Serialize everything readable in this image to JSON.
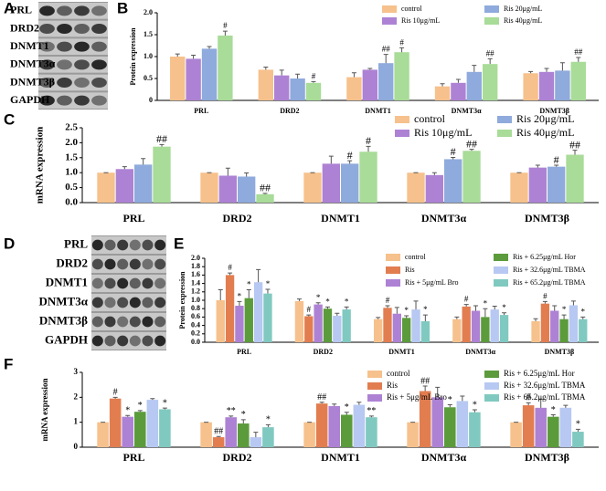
{
  "blots": [
    {
      "panel_label": "A",
      "rows": [
        "PRL",
        "DRD2",
        "DNMT1",
        "DNMT3α",
        "DNMT3β",
        "GAPDH"
      ]
    },
    {
      "panel_label": "D",
      "rows": [
        "PRL",
        "DRD2",
        "DNMT1",
        "DNMT3α",
        "DNMT3β",
        "GAPDH"
      ]
    }
  ],
  "chart_data": [
    {
      "type": "bar",
      "panel_label": "B",
      "y_label": "Protein expression",
      "categories": [
        "PRL",
        "DRD2",
        "DNMT1",
        "DNMT3α",
        "DNMT3β"
      ],
      "ylim": [
        0,
        2
      ],
      "yticks": [
        0,
        0.5,
        {
          "value": 1,
          "label": "1.0"
        },
        1.5,
        {
          "value": 2,
          "label": "2.0"
        }
      ],
      "series": [
        {
          "name": "control",
          "color": "#f6c18c",
          "values": [
            1.0,
            0.7,
            0.53,
            0.32,
            0.62
          ],
          "errors": [
            0.06,
            0.06,
            0.1,
            0.06,
            0.04
          ],
          "annotations": [
            null,
            null,
            null,
            null,
            null
          ]
        },
        {
          "name": "Ris 10μg/mL",
          "color": "#ad82d4",
          "values": [
            0.95,
            0.57,
            0.7,
            0.4,
            0.65
          ],
          "errors": [
            0.08,
            0.12,
            0.03,
            0.08,
            0.08
          ],
          "annotations": [
            null,
            null,
            null,
            null,
            null
          ]
        },
        {
          "name": "Ris 20μg/mL",
          "color": "#8faadc",
          "values": [
            1.18,
            0.5,
            0.85,
            0.65,
            0.68
          ],
          "errors": [
            0.05,
            0.1,
            0.2,
            0.15,
            0.18
          ],
          "annotations": [
            null,
            null,
            "##",
            null,
            null
          ]
        },
        {
          "name": "Ris 40μg/mL",
          "color": "#a8dc98",
          "values": [
            1.48,
            0.4,
            1.1,
            0.83,
            0.88
          ],
          "errors": [
            0.1,
            0.03,
            0.1,
            0.12,
            0.1
          ],
          "annotations": [
            "#",
            "#",
            "#",
            "##",
            "##"
          ]
        }
      ]
    },
    {
      "type": "bar",
      "panel_label": "C",
      "y_label": "mRNA expression",
      "categories": [
        "PRL",
        "DRD2",
        "DNMT1",
        "DNMT3α",
        "DNMT3β"
      ],
      "ylim": [
        0,
        2.5
      ],
      "yticks": [
        {
          "value": 0,
          "label": "0.0"
        },
        0.5,
        {
          "value": 1,
          "label": "1.0"
        },
        1.5,
        {
          "value": 2,
          "label": "2.0"
        },
        2.5
      ],
      "series": [
        {
          "name": "control",
          "color": "#f6c18c",
          "values": [
            1.0,
            1.0,
            1.0,
            1.0,
            1.0
          ],
          "errors": [
            0,
            0,
            0,
            0,
            0
          ],
          "annotations": [
            null,
            null,
            null,
            null,
            null
          ]
        },
        {
          "name": "Ris 10μg/mL",
          "color": "#ad82d4",
          "values": [
            1.12,
            0.9,
            1.3,
            0.92,
            1.17
          ],
          "errors": [
            0.08,
            0.25,
            0.25,
            0.08,
            0.08
          ],
          "annotations": [
            null,
            null,
            null,
            null,
            null
          ]
        },
        {
          "name": "Ris 20μg/mL",
          "color": "#8faadc",
          "values": [
            1.27,
            0.87,
            1.3,
            1.45,
            1.2
          ],
          "errors": [
            0.2,
            0.12,
            0.1,
            0.06,
            0.05
          ],
          "annotations": [
            null,
            null,
            "#",
            "#",
            "#"
          ]
        },
        {
          "name": "Ris 40μg/mL",
          "color": "#a8dc98",
          "values": [
            1.87,
            0.28,
            1.7,
            1.73,
            1.6
          ],
          "errors": [
            0.07,
            0.03,
            0.18,
            0.05,
            0.15
          ],
          "annotations": [
            "##",
            "##",
            "#",
            "##",
            "##"
          ]
        }
      ]
    },
    {
      "type": "bar",
      "panel_label": "E",
      "y_label": "Protein expression",
      "categories": [
        "PRL",
        "DRD2",
        "DNMT1",
        "DNMT3α",
        "DNMT3β"
      ],
      "ylim": [
        0,
        2
      ],
      "yticks": [
        {
          "value": 0,
          "label": "0.0"
        },
        0.2,
        0.4,
        0.6,
        0.8,
        {
          "value": 1,
          "label": "1.0"
        },
        1.2,
        1.4,
        1.6,
        1.8,
        {
          "value": 2,
          "label": "2.0"
        }
      ],
      "series": [
        {
          "name": "control",
          "color": "#f6c18c",
          "values": [
            1.0,
            0.98,
            0.55,
            0.55,
            0.5
          ],
          "errors": [
            0.25,
            0.05,
            0.04,
            0.05,
            0.06
          ],
          "annotations": [
            null,
            null,
            null,
            null,
            null
          ]
        },
        {
          "name": "Ris",
          "color": "#e27d50",
          "values": [
            1.6,
            0.62,
            0.82,
            0.85,
            0.92
          ],
          "errors": [
            0.05,
            0.03,
            0.05,
            0.05,
            0.05
          ],
          "annotations": [
            "#",
            "#",
            "#",
            "#",
            "#"
          ]
        },
        {
          "name": "Ris + 5μg/mL Bro",
          "color": "#ad82d4",
          "values": [
            0.87,
            0.9,
            0.68,
            0.75,
            0.75
          ],
          "errors": [
            0.1,
            0.04,
            0.15,
            0.12,
            0.12
          ],
          "annotations": [
            "*",
            "*",
            null,
            null,
            null
          ]
        },
        {
          "name": "Ris + 6.25μg/mL Hor",
          "color": "#5b9b3b",
          "values": [
            1.05,
            0.8,
            0.58,
            0.6,
            0.55
          ],
          "errors": [
            0.2,
            0.04,
            0.05,
            0.2,
            0.1
          ],
          "annotations": [
            "*",
            "*",
            "*",
            "*",
            "*"
          ]
        },
        {
          "name": "Ris + 32.6μg/mL TBMA",
          "color": "#b7c8f2",
          "values": [
            1.43,
            0.63,
            0.78,
            0.78,
            0.88
          ],
          "errors": [
            0.3,
            0.06,
            0.2,
            0.08,
            0.1
          ],
          "annotations": [
            null,
            null,
            null,
            null,
            null
          ]
        },
        {
          "name": "Ris + 65.2μg/mL TBMA",
          "color": "#80c9c0",
          "values": [
            1.16,
            0.78,
            0.5,
            0.65,
            0.55
          ],
          "errors": [
            0.1,
            0.06,
            0.15,
            0.05,
            0.05
          ],
          "annotations": [
            "*",
            "*",
            "*",
            "*",
            "*"
          ]
        }
      ]
    },
    {
      "type": "bar",
      "panel_label": "F",
      "y_label": "mRNA expression",
      "categories": [
        "PRL",
        "DRD2",
        "DNMT1",
        "DNMT3α",
        "DNMT3β"
      ],
      "ylim": [
        0,
        3
      ],
      "yticks": [
        0,
        1,
        2,
        3
      ],
      "series": [
        {
          "name": "control",
          "color": "#f6c18c",
          "values": [
            1.0,
            1.0,
            1.0,
            1.0,
            1.0
          ],
          "errors": [
            0,
            0,
            0,
            0,
            0
          ],
          "annotations": [
            null,
            null,
            null,
            null,
            null
          ]
        },
        {
          "name": "Ris",
          "color": "#e27d50",
          "values": [
            1.95,
            0.4,
            1.75,
            2.25,
            1.68
          ],
          "errors": [
            0.05,
            0.03,
            0.05,
            0.2,
            0.1
          ],
          "annotations": [
            "#",
            "##",
            "##",
            "##",
            "#"
          ]
        },
        {
          "name": "Ris + 5μg/mL Bro",
          "color": "#ad82d4",
          "values": [
            1.22,
            1.2,
            1.65,
            2.0,
            1.58
          ],
          "errors": [
            0.05,
            0.05,
            0.08,
            0.4,
            0.35
          ],
          "annotations": [
            "*",
            "**",
            null,
            null,
            null
          ]
        },
        {
          "name": "Ris + 6.25μg/mL Hor",
          "color": "#5b9b3b",
          "values": [
            1.42,
            0.95,
            1.3,
            1.6,
            1.22
          ],
          "errors": [
            0.05,
            0.15,
            0.1,
            0.1,
            0.08
          ],
          "annotations": [
            "*",
            "*",
            "*",
            "*",
            "*"
          ]
        },
        {
          "name": "Ris + 32.6μg/mL TBMA",
          "color": "#b7c8f2",
          "values": [
            1.9,
            0.4,
            1.7,
            1.85,
            1.58
          ],
          "errors": [
            0.05,
            0.2,
            0.1,
            0.2,
            0.1
          ],
          "annotations": [
            null,
            null,
            null,
            null,
            null
          ]
        },
        {
          "name": "Ris + 65.2μg/mL TBMA",
          "color": "#80c9c0",
          "values": [
            1.52,
            0.8,
            1.2,
            1.4,
            0.62
          ],
          "errors": [
            0.05,
            0.1,
            0.05,
            0.1,
            0.1
          ],
          "annotations": [
            "*",
            "*",
            "**",
            "*",
            "*"
          ]
        }
      ]
    }
  ]
}
